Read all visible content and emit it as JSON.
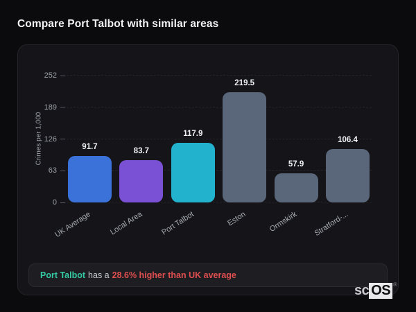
{
  "page": {
    "title": "Compare Port Talbot with similar areas"
  },
  "chart_data": {
    "type": "bar",
    "categories": [
      "UK Average",
      "Local Area",
      "Port Talbot",
      "Eston",
      "Ormskirk",
      "Stratford-..."
    ],
    "values": [
      91.7,
      83.7,
      117.9,
      219.5,
      57.9,
      106.4
    ],
    "value_labels": [
      "91.7",
      "83.7",
      "117.9",
      "219.5",
      "57.9",
      "106.4"
    ],
    "bar_colors": [
      "#3b72d9",
      "#7a50d4",
      "#22b2ce",
      "#5a6679",
      "#5a6679",
      "#5a6679"
    ],
    "title": "",
    "xlabel": "",
    "ylabel": "Crimes per 1,000",
    "ylim": [
      0,
      252
    ],
    "yticks": [
      0,
      63,
      126,
      189,
      252
    ],
    "grid": "horizontal-dashed",
    "legend": "none",
    "highlight_colors": {
      "uk_average": "#3b72d9",
      "local_area": "#7a50d4",
      "port_talbot": "#22b2ce",
      "comparison": "#5a6679"
    }
  },
  "note": {
    "subject": "Port Talbot",
    "connector": "has a",
    "highlight": "28.6% higher than UK average"
  },
  "brand": {
    "prefix": "sc",
    "suffix": "OS",
    "registered": "®"
  }
}
